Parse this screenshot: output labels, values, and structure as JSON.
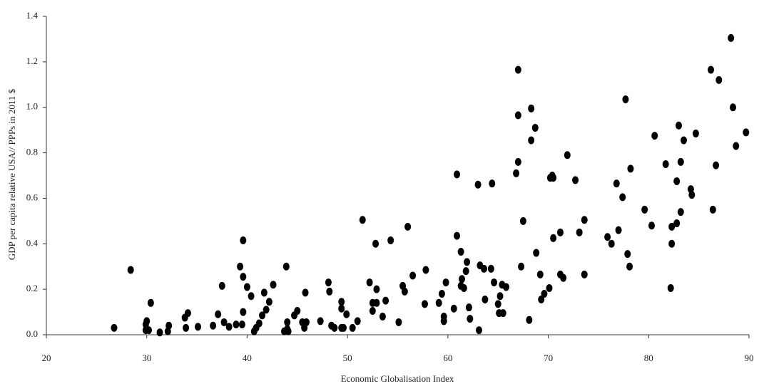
{
  "chart_data": {
    "type": "scatter",
    "x_label": "Economic Globalisation Index",
    "y_label": "GDP per capita relative USA// PPPs in 2011 $",
    "color": "#000000",
    "grid": false,
    "xlim": [
      20,
      90
    ],
    "xticks": [
      20,
      30,
      40,
      50,
      60,
      70,
      80,
      90
    ],
    "ylim": [
      0,
      1.4
    ],
    "yticks": [
      {
        "value": 0,
        "label": "0.0"
      },
      0.2,
      0.4,
      0.6,
      0.8,
      {
        "value": 1,
        "label": "1.0"
      },
      1.2,
      1.4
    ],
    "x": [
      26.75,
      28.4,
      29.9,
      29.9,
      30.0,
      30.2,
      30.4,
      31.3,
      32.1,
      32.2,
      33.8,
      33.9,
      34.1,
      35.1,
      36.6,
      37.1,
      37.5,
      37.7,
      38.2,
      38.9,
      39.3,
      39.5,
      39.6,
      39.6,
      39.6,
      40.0,
      40.4,
      40.7,
      40.9,
      41.2,
      41.5,
      41.7,
      41.9,
      42.2,
      42.6,
      43.7,
      44.0,
      44.0,
      43.9,
      44.1,
      44.7,
      45.0,
      45.5,
      45.7,
      45.8,
      45.9,
      47.3,
      48.1,
      48.2,
      48.4,
      48.7,
      49.4,
      49.4,
      49.4,
      49.6,
      49.9,
      50.5,
      51.0,
      51.5,
      52.2,
      52.5,
      52.5,
      52.8,
      52.9,
      52.9,
      53.5,
      53.8,
      54.3,
      55.1,
      55.5,
      55.7,
      56.0,
      56.5,
      57.7,
      57.8,
      59.1,
      59.4,
      59.6,
      59.6,
      59.8,
      60.6,
      60.9,
      60.9,
      61.3,
      61.3,
      61.4,
      61.6,
      61.8,
      61.9,
      62.1,
      62.2,
      63.0,
      63.1,
      63.2,
      63.6,
      63.7,
      64.4,
      64.3,
      64.6,
      65.0,
      65.1,
      65.2,
      65.4,
      65.5,
      65.8,
      66.8,
      67.0,
      67.0,
      67.0,
      67.3,
      67.5,
      68.1,
      68.3,
      68.3,
      68.7,
      68.8,
      69.2,
      69.3,
      69.6,
      70.1,
      70.2,
      70.4,
      70.5,
      70.5,
      71.2,
      71.2,
      71.5,
      71.9,
      72.7,
      73.1,
      73.6,
      73.6,
      75.9,
      76.3,
      76.8,
      77.0,
      77.4,
      77.7,
      77.9,
      78.1,
      78.2,
      79.6,
      80.3,
      80.6,
      81.7,
      82.2,
      82.3,
      82.3,
      82.8,
      82.8,
      83.0,
      83.2,
      83.2,
      83.5,
      84.2,
      84.3,
      84.7,
      86.2,
      86.4,
      86.7,
      87.0,
      88.2,
      88.4,
      88.7,
      89.7
    ],
    "y": [
      0.03,
      0.285,
      0.02,
      0.045,
      0.06,
      0.02,
      0.14,
      0.01,
      0.015,
      0.04,
      0.075,
      0.03,
      0.095,
      0.035,
      0.04,
      0.09,
      0.215,
      0.055,
      0.035,
      0.045,
      0.3,
      0.045,
      0.415,
      0.255,
      0.1,
      0.21,
      0.17,
      0.015,
      0.03,
      0.05,
      0.085,
      0.185,
      0.11,
      0.145,
      0.22,
      0.015,
      0.025,
      0.055,
      0.3,
      0.015,
      0.085,
      0.105,
      0.055,
      0.03,
      0.185,
      0.055,
      0.06,
      0.23,
      0.19,
      0.04,
      0.03,
      0.145,
      0.115,
      0.03,
      0.03,
      0.09,
      0.03,
      0.06,
      0.505,
      0.23,
      0.14,
      0.105,
      0.4,
      0.2,
      0.14,
      0.08,
      0.15,
      0.415,
      0.055,
      0.215,
      0.19,
      0.475,
      0.26,
      0.135,
      0.285,
      0.14,
      0.18,
      0.06,
      0.08,
      0.23,
      0.115,
      0.705,
      0.435,
      0.365,
      0.215,
      0.245,
      0.205,
      0.28,
      0.32,
      0.12,
      0.07,
      0.66,
      0.02,
      0.305,
      0.29,
      0.155,
      0.665,
      0.29,
      0.23,
      0.135,
      0.095,
      0.17,
      0.22,
      0.095,
      0.21,
      0.71,
      0.76,
      0.965,
      1.165,
      0.3,
      0.5,
      0.065,
      0.855,
      0.995,
      0.91,
      0.36,
      0.265,
      0.155,
      0.18,
      0.205,
      0.69,
      0.7,
      0.425,
      0.69,
      0.265,
      0.45,
      0.25,
      0.79,
      0.68,
      0.45,
      0.505,
      0.265,
      0.43,
      0.4,
      0.665,
      0.46,
      0.605,
      1.035,
      0.355,
      0.3,
      0.73,
      0.55,
      0.48,
      0.875,
      0.75,
      0.205,
      0.475,
      0.4,
      0.675,
      0.49,
      0.92,
      0.76,
      0.54,
      0.855,
      0.64,
      0.615,
      0.885,
      1.165,
      0.55,
      0.745,
      1.12,
      1.305,
      1.0,
      0.83,
      0.89
    ]
  }
}
